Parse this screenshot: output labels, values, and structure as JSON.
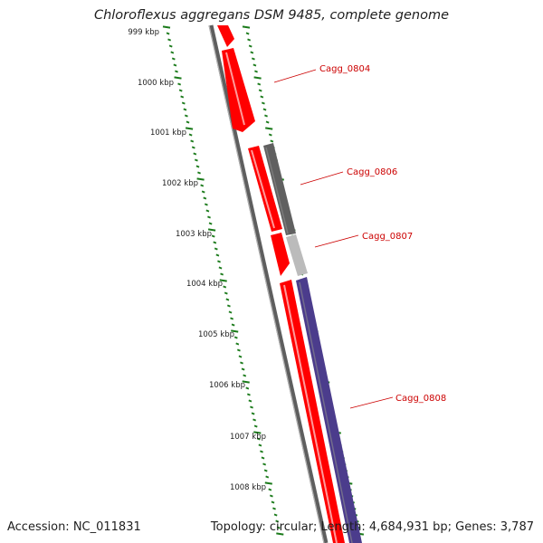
{
  "title": "Chloroflexus aggregans DSM 9485, complete genome",
  "footer": {
    "accession": "Accession: NC_011831",
    "summary": "Topology: circular; Length: 4,684,931 bp; Genes: 3,787"
  },
  "scale_labels": [
    "999 kbp",
    "1000 kbp",
    "1001 kbp",
    "1002 kbp",
    "1003 kbp",
    "1004 kbp",
    "1005 kbp",
    "1006 kbp",
    "1007 kbp",
    "1008 kbp"
  ],
  "genes": [
    {
      "label": "Cagg_0804",
      "color": "#ff0000"
    },
    {
      "label": "Cagg_0806",
      "color": "#606060"
    },
    {
      "label": "Cagg_0807",
      "color": "#bbbbbb"
    },
    {
      "label": "Cagg_0808",
      "color": "#4b3c8c"
    }
  ],
  "colors": {
    "backbone": "#888888",
    "tick": "#1a7a1a",
    "label": "#cc0000",
    "cds": "#ff0000"
  }
}
